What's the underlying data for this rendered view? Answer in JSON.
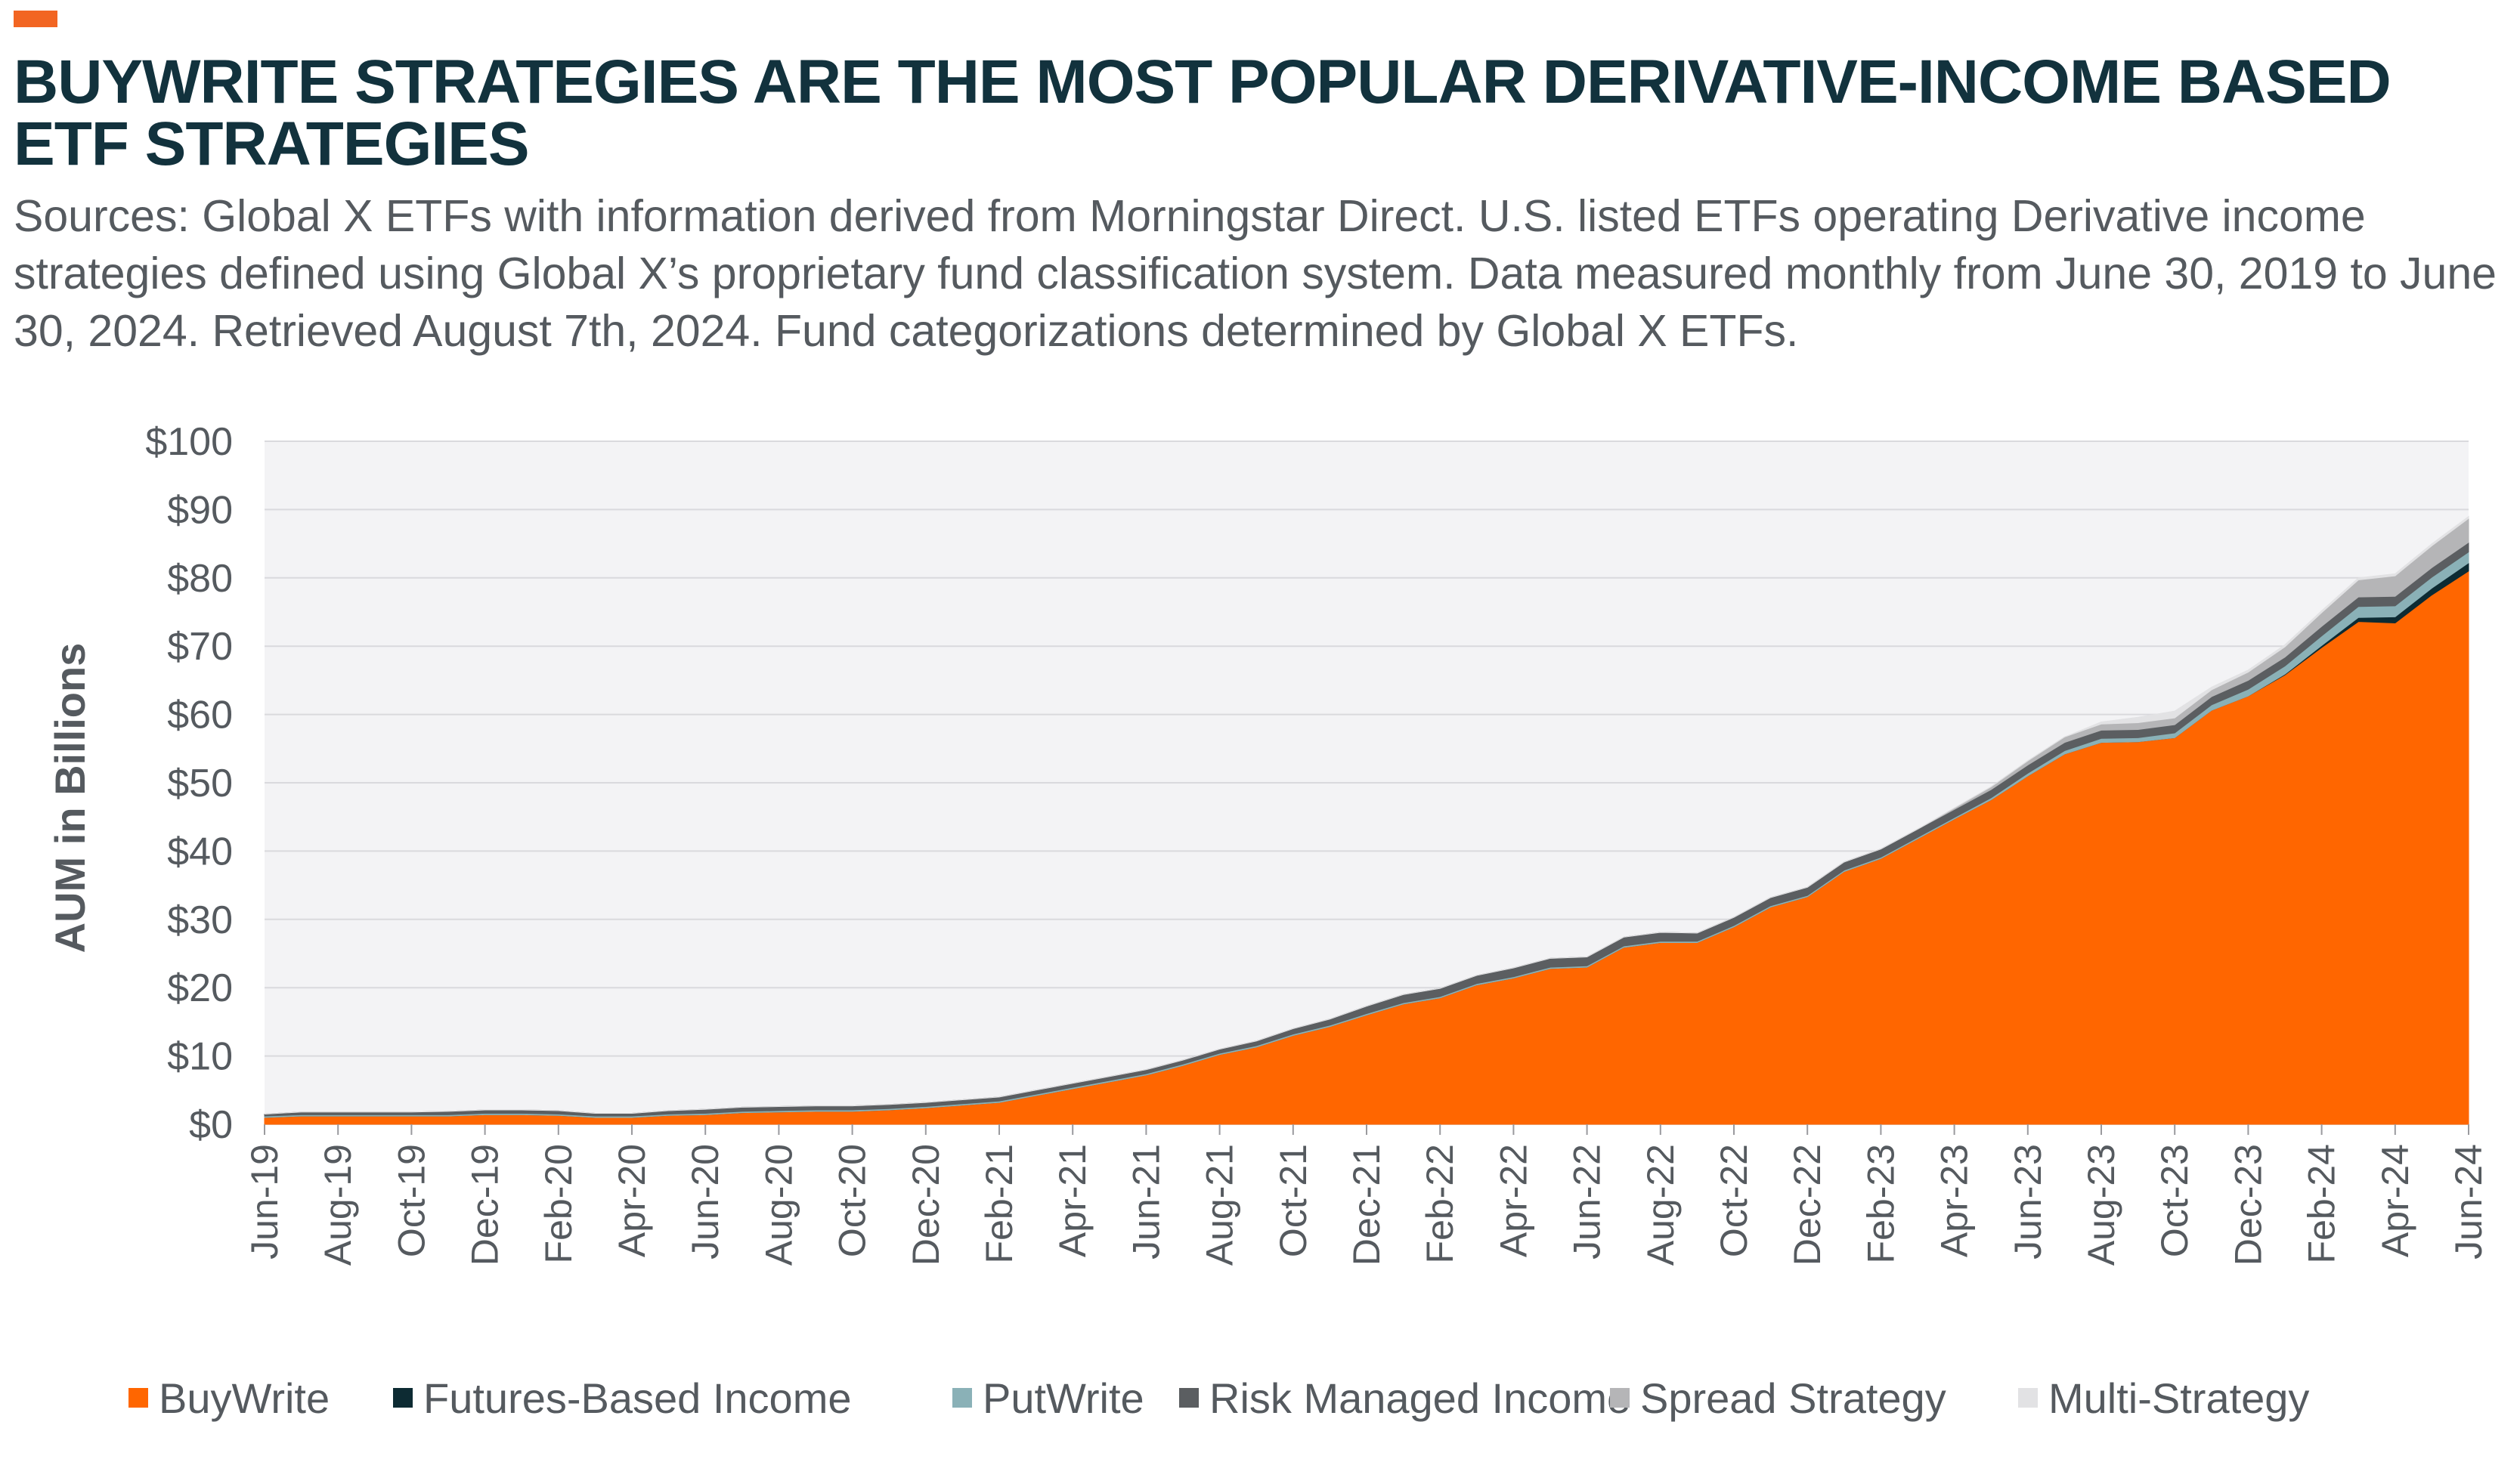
{
  "header": {
    "title": "BUYWRITE STRATEGIES ARE THE MOST POPULAR DERIVATIVE-INCOME BASED ETF STRATEGIES",
    "subtitle": "Sources: Global X ETFs with information derived from Morningstar Direct. U.S. listed ETFs operating Derivative income strategies defined using Global X’s proprietary fund classification system. Data measured monthly from June 30, 2019 to June 30, 2024. Retrieved August 7th, 2024. Fund categorizations determined by Global X ETFs."
  },
  "colors": {
    "accent": "#f26522",
    "title": "#12323d",
    "plot_background": "#f3f3f5",
    "gridline": "#d9d9dd"
  },
  "chart_data": {
    "type": "area",
    "stacked": true,
    "ylabel": "AUM in Billions",
    "xlabel": "",
    "ylim": [
      0,
      100
    ],
    "y_ticks": [
      "$0",
      "$10",
      "$20",
      "$30",
      "$40",
      "$50",
      "$60",
      "$70",
      "$80",
      "$90",
      "$100"
    ],
    "x_tick_labels": [
      "Jun-19",
      "Aug-19",
      "Oct-19",
      "Dec-19",
      "Feb-20",
      "Apr-20",
      "Jun-20",
      "Aug-20",
      "Oct-20",
      "Dec-20",
      "Feb-21",
      "Apr-21",
      "Jun-21",
      "Aug-21",
      "Oct-21",
      "Dec-21",
      "Feb-22",
      "Apr-22",
      "Jun-22",
      "Aug-22",
      "Oct-22",
      "Dec-22",
      "Feb-23",
      "Apr-23",
      "Jun-23",
      "Aug-23",
      "Oct-23",
      "Dec-23",
      "Feb-24",
      "Apr-24",
      "Jun-24"
    ],
    "x": [
      "Jun-19",
      "Jul-19",
      "Aug-19",
      "Sep-19",
      "Oct-19",
      "Nov-19",
      "Dec-19",
      "Jan-20",
      "Feb-20",
      "Mar-20",
      "Apr-20",
      "May-20",
      "Jun-20",
      "Jul-20",
      "Aug-20",
      "Sep-20",
      "Oct-20",
      "Nov-20",
      "Dec-20",
      "Jan-21",
      "Feb-21",
      "Mar-21",
      "Apr-21",
      "May-21",
      "Jun-21",
      "Jul-21",
      "Aug-21",
      "Sep-21",
      "Oct-21",
      "Nov-21",
      "Dec-21",
      "Jan-22",
      "Feb-22",
      "Mar-22",
      "Apr-22",
      "May-22",
      "Jun-22",
      "Jul-22",
      "Aug-22",
      "Sep-22",
      "Oct-22",
      "Nov-22",
      "Dec-22",
      "Jan-23",
      "Feb-23",
      "Mar-23",
      "Apr-23",
      "May-23",
      "Jun-23",
      "Jul-23",
      "Aug-23",
      "Sep-23",
      "Oct-23",
      "Nov-23",
      "Dec-23",
      "Jan-24",
      "Feb-24",
      "Mar-24",
      "Apr-24",
      "May-24",
      "Jun-24"
    ],
    "grid": true,
    "legend_position": "bottom",
    "series": [
      {
        "name": "BuyWrite",
        "color": "#ff6600",
        "values": [
          1.0,
          1.2,
          1.2,
          1.2,
          1.2,
          1.2,
          1.4,
          1.4,
          1.3,
          1.0,
          1.0,
          1.3,
          1.4,
          1.7,
          1.8,
          1.9,
          1.9,
          2.1,
          2.4,
          2.8,
          3.2,
          4.2,
          5.2,
          6.2,
          7.2,
          8.6,
          10.2,
          11.3,
          13.0,
          14.3,
          16.0,
          17.6,
          18.5,
          20.4,
          21.4,
          22.8,
          23.0,
          25.9,
          26.6,
          26.6,
          28.9,
          31.8,
          33.3,
          37.0,
          38.9,
          41.8,
          44.7,
          47.5,
          51.0,
          54.2,
          55.9,
          56.0,
          56.6,
          60.6,
          62.7,
          65.8,
          69.8,
          73.6,
          73.4,
          77.5,
          81.0
        ]
      },
      {
        "name": "Futures-Based Income",
        "color": "#0d2b33",
        "values": [
          0,
          0,
          0,
          0,
          0,
          0,
          0,
          0,
          0,
          0,
          0,
          0,
          0,
          0,
          0,
          0,
          0,
          0,
          0,
          0,
          0,
          0,
          0,
          0,
          0,
          0,
          0,
          0,
          0,
          0,
          0,
          0,
          0,
          0,
          0,
          0,
          0,
          0,
          0,
          0,
          0,
          0,
          0,
          0,
          0,
          0,
          0,
          0,
          0,
          0,
          0,
          0,
          0,
          0,
          0,
          0.1,
          0.3,
          0.6,
          0.9,
          1.0,
          1.2
        ]
      },
      {
        "name": "PutWrite",
        "color": "#8ab1b7",
        "values": [
          0.2,
          0.2,
          0.2,
          0.2,
          0.2,
          0.2,
          0.2,
          0.2,
          0.2,
          0.2,
          0.2,
          0.2,
          0.2,
          0.2,
          0.2,
          0.2,
          0.2,
          0.2,
          0.2,
          0.2,
          0.2,
          0.2,
          0.2,
          0.2,
          0.2,
          0.2,
          0.2,
          0.2,
          0.2,
          0.2,
          0.2,
          0.2,
          0.2,
          0.2,
          0.2,
          0.2,
          0.2,
          0.2,
          0.2,
          0.2,
          0.2,
          0.2,
          0.2,
          0.2,
          0.2,
          0.2,
          0.2,
          0.3,
          0.4,
          0.5,
          0.6,
          0.6,
          0.7,
          0.8,
          1.0,
          1.2,
          1.4,
          1.6,
          1.6,
          1.6,
          1.6
        ]
      },
      {
        "name": "Risk Managed Income",
        "color": "#5b5e61",
        "values": [
          0.3,
          0.4,
          0.4,
          0.4,
          0.4,
          0.5,
          0.5,
          0.5,
          0.5,
          0.4,
          0.4,
          0.5,
          0.6,
          0.6,
          0.6,
          0.6,
          0.6,
          0.6,
          0.6,
          0.6,
          0.6,
          0.6,
          0.6,
          0.6,
          0.6,
          0.6,
          0.6,
          0.7,
          0.8,
          0.9,
          1.1,
          1.2,
          1.2,
          1.2,
          1.3,
          1.3,
          1.3,
          1.3,
          1.3,
          1.2,
          1.2,
          1.2,
          1.2,
          1.2,
          1.2,
          1.2,
          1.2,
          1.2,
          1.2,
          1.2,
          1.2,
          1.2,
          1.2,
          1.2,
          1.3,
          1.3,
          1.4,
          1.4,
          1.4,
          1.4,
          1.4
        ]
      },
      {
        "name": "Spread Strategy",
        "color": "#b5b5b7",
        "values": [
          0,
          0,
          0,
          0,
          0,
          0,
          0,
          0,
          0,
          0,
          0,
          0,
          0,
          0,
          0,
          0,
          0,
          0,
          0,
          0,
          0,
          0,
          0,
          0,
          0,
          0,
          0,
          0,
          0,
          0,
          0,
          0,
          0,
          0,
          0,
          0,
          0,
          0,
          0,
          0,
          0,
          0,
          0,
          0,
          0,
          0,
          0.2,
          0.4,
          0.6,
          0.8,
          0.9,
          1.0,
          1.0,
          1.0,
          1.2,
          1.5,
          2.0,
          2.5,
          3.0,
          3.2,
          3.5
        ]
      },
      {
        "name": "Multi-Strategy",
        "color": "#e2e2e4",
        "values": [
          0,
          0,
          0,
          0,
          0,
          0,
          0,
          0,
          0,
          0,
          0,
          0,
          0,
          0,
          0,
          0,
          0,
          0,
          0,
          0,
          0,
          0,
          0,
          0,
          0,
          0,
          0,
          0,
          0,
          0,
          0,
          0,
          0,
          0,
          0,
          0,
          0,
          0,
          0,
          0,
          0,
          0,
          0,
          0,
          0,
          0,
          0,
          0,
          0,
          0,
          0.3,
          0.8,
          1.0,
          0.4,
          0.3,
          0.3,
          0.3,
          0.3,
          0.3,
          0.3,
          0.3
        ]
      }
    ]
  }
}
